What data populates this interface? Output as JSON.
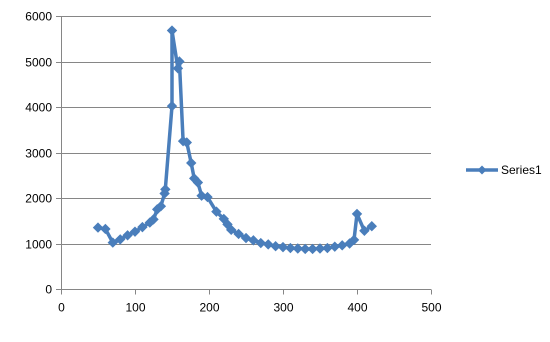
{
  "chart_data": {
    "type": "scatter",
    "title": "",
    "xlabel": "",
    "ylabel": "",
    "xlim": [
      0,
      500
    ],
    "ylim": [
      0,
      6000
    ],
    "x_ticks": [
      0,
      100,
      200,
      300,
      400,
      500
    ],
    "y_ticks": [
      0,
      1000,
      2000,
      3000,
      4000,
      5000,
      6000
    ],
    "grid": "horizontal",
    "legend_position": "right",
    "series": [
      {
        "name": "Series1",
        "color": "#4a7ebb",
        "marker": "diamond",
        "line": "straight",
        "x": [
          50,
          60,
          70,
          80,
          90,
          100,
          110,
          120,
          125,
          130,
          135,
          140,
          141,
          150,
          150,
          158,
          160,
          165,
          170,
          176,
          180,
          185,
          190,
          198,
          210,
          220,
          225,
          230,
          240,
          250,
          260,
          270,
          280,
          290,
          300,
          310,
          320,
          330,
          340,
          350,
          360,
          370,
          380,
          390,
          396,
          400,
          410,
          420
        ],
        "y": [
          1350,
          1320,
          1020,
          1090,
          1180,
          1260,
          1360,
          1460,
          1530,
          1750,
          1820,
          2100,
          2190,
          4020,
          5680,
          4850,
          5000,
          3250,
          3220,
          2770,
          2430,
          2340,
          2050,
          2020,
          1700,
          1540,
          1420,
          1300,
          1210,
          1120,
          1070,
          1010,
          980,
          940,
          920,
          900,
          890,
          880,
          880,
          890,
          900,
          930,
          960,
          1000,
          1080,
          1650,
          1280,
          1380
        ]
      }
    ]
  }
}
